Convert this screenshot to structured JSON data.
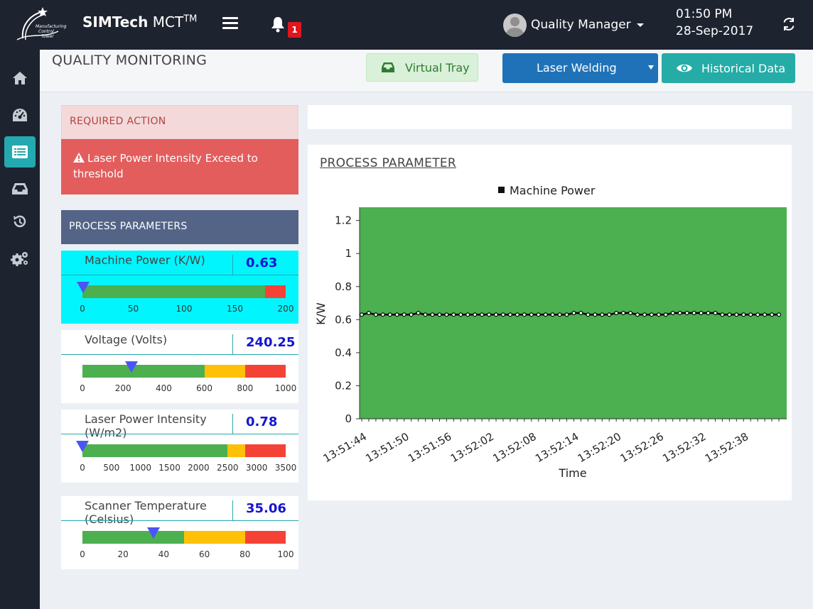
{
  "topbar": {
    "brand_bold": "SIMTech",
    "brand_rest": " MCT",
    "brand_sup": "TM",
    "notification_count": "1",
    "user_name": "Quality Manager",
    "time": "01:50 PM",
    "date": "28-Sep-2017"
  },
  "sidebar": {
    "items": [
      {
        "icon": "home-icon"
      },
      {
        "icon": "dashboard-icon"
      },
      {
        "icon": "list-icon",
        "active": true
      },
      {
        "icon": "inbox-icon"
      },
      {
        "icon": "history-icon"
      },
      {
        "icon": "settings-icon"
      }
    ]
  },
  "header": {
    "title": "QUALITY MONITORING",
    "virtual_tray": "Virtual Tray",
    "process_select": "Laser Welding",
    "historical": "Historical Data"
  },
  "required_action": {
    "title": "REQUIRED ACTION",
    "message": "Laser Power Intensity Exceed to threshold"
  },
  "process_parameters": {
    "title": "PROCESS PARAMETERS",
    "items": [
      {
        "name": "Machine Power (K/W)",
        "value": "0.63",
        "min": 0,
        "max": 200,
        "current": 0.63,
        "ticks": [
          "0",
          "50",
          "100",
          "150",
          "200"
        ],
        "segments": [
          {
            "from": 0,
            "to": 180,
            "color": "#4caf50"
          },
          {
            "from": 180,
            "to": 200,
            "color": "#f44336"
          }
        ],
        "highlight": true
      },
      {
        "name": "Voltage (Volts)",
        "value": "240.25",
        "min": 0,
        "max": 1000,
        "current": 240.25,
        "ticks": [
          "0",
          "200",
          "400",
          "600",
          "800",
          "1000"
        ],
        "segments": [
          {
            "from": 0,
            "to": 600,
            "color": "#4caf50"
          },
          {
            "from": 600,
            "to": 800,
            "color": "#ffc107"
          },
          {
            "from": 800,
            "to": 1000,
            "color": "#f44336"
          }
        ],
        "highlight": false
      },
      {
        "name": "Laser Power Intensity (W/m2)",
        "value": "0.78",
        "min": 0,
        "max": 3500,
        "current": 0.78,
        "ticks": [
          "0",
          "500",
          "1000",
          "1500",
          "2000",
          "2500",
          "3000",
          "3500"
        ],
        "segments": [
          {
            "from": 0,
            "to": 2500,
            "color": "#4caf50"
          },
          {
            "from": 2500,
            "to": 2800,
            "color": "#ffc107"
          },
          {
            "from": 2800,
            "to": 3500,
            "color": "#f44336"
          }
        ],
        "highlight": false
      },
      {
        "name": "Scanner Temperature (Celsius)",
        "value": "35.06",
        "min": 0,
        "max": 100,
        "current": 35.06,
        "ticks": [
          "0",
          "20",
          "40",
          "60",
          "80",
          "100"
        ],
        "segments": [
          {
            "from": 0,
            "to": 50,
            "color": "#4caf50"
          },
          {
            "from": 50,
            "to": 80,
            "color": "#ffc107"
          },
          {
            "from": 80,
            "to": 100,
            "color": "#f44336"
          }
        ],
        "highlight": false
      }
    ]
  },
  "chart_panel_title": "PROCESS PARAMETER",
  "chart_data": {
    "type": "line",
    "title": "",
    "xlabel": "Time",
    "ylabel": "K/W",
    "ylim": [
      0,
      1.28
    ],
    "yticks": [
      "0",
      "0.2",
      "0.4",
      "0.6",
      "0.8",
      "1",
      "1.2"
    ],
    "xticks": [
      "13:51:44",
      "13:51:50",
      "13:51:56",
      "13:52:02",
      "13:52:08",
      "13:52:14",
      "13:52:20",
      "13:52:26",
      "13:52:32",
      "13:52:38"
    ],
    "background": "#4caf50",
    "legend": "top-center",
    "series": [
      {
        "name": "Machine Power",
        "values": [
          0.63,
          0.64,
          0.63,
          0.63,
          0.63,
          0.63,
          0.63,
          0.63,
          0.64,
          0.63,
          0.63,
          0.63,
          0.63,
          0.63,
          0.63,
          0.63,
          0.63,
          0.63,
          0.63,
          0.63,
          0.63,
          0.63,
          0.63,
          0.63,
          0.63,
          0.63,
          0.63,
          0.63,
          0.63,
          0.63,
          0.64,
          0.64,
          0.63,
          0.63,
          0.63,
          0.63,
          0.64,
          0.64,
          0.64,
          0.63,
          0.63,
          0.63,
          0.63,
          0.63,
          0.64,
          0.64,
          0.64,
          0.64,
          0.64,
          0.64,
          0.64,
          0.63,
          0.63,
          0.63,
          0.63,
          0.63,
          0.63,
          0.63,
          0.63,
          0.63
        ]
      }
    ]
  }
}
